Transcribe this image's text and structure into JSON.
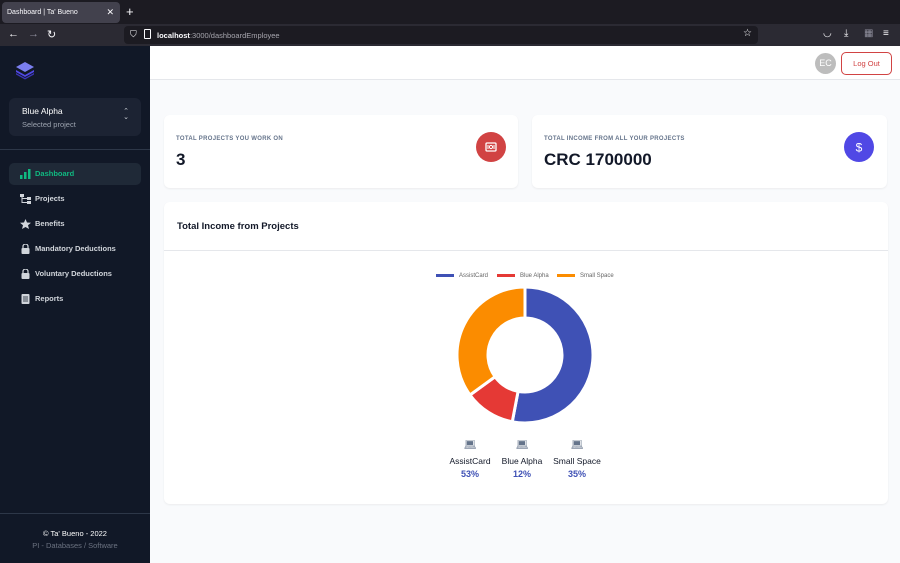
{
  "browser": {
    "tab_title": "Dashboard | Ta' Bueno",
    "url_host": "localhost",
    "url_path": ":3000/dashboardEmployee"
  },
  "sidebar": {
    "project_name": "Blue Alpha",
    "project_sub": "Selected project",
    "items": [
      {
        "label": "Dashboard",
        "icon": "bar-chart-icon",
        "active": true
      },
      {
        "label": "Projects",
        "icon": "hierarchy-icon"
      },
      {
        "label": "Benefits",
        "icon": "star-icon"
      },
      {
        "label": "Mandatory Deductions",
        "icon": "lock-icon"
      },
      {
        "label": "Voluntary Deductions",
        "icon": "lock-icon"
      },
      {
        "label": "Reports",
        "icon": "document-icon"
      }
    ],
    "footer_line1": "© Ta' Bueno - 2022",
    "footer_line2": "PI - Databases / Software"
  },
  "topbar": {
    "avatar_initials": "EC",
    "logout_label": "Log Out"
  },
  "cards": [
    {
      "label": "TOTAL PROJECTS YOU WORK ON",
      "value": "3",
      "icon": "money-icon",
      "color": "#d14343"
    },
    {
      "label": "TOTAL INCOME FROM ALL YOUR PROJECTS",
      "value": "CRC 1700000",
      "icon": "dollar-icon",
      "color": "#5048e5"
    }
  ],
  "chart_section": {
    "title": "Total Income from Projects"
  },
  "chart_data": {
    "type": "pie",
    "series": [
      {
        "name": "AssistCard",
        "value": 53,
        "color": "#3f51b5"
      },
      {
        "name": "Blue Alpha",
        "value": 12,
        "color": "#e53935"
      },
      {
        "name": "Small Space",
        "value": 35,
        "color": "#fb8c00"
      }
    ],
    "legend_placement": "top"
  },
  "stats": [
    {
      "name": "AssistCard",
      "value": "53%",
      "color": "#3f51b5"
    },
    {
      "name": "Blue Alpha",
      "value": "12%",
      "color": "#3f51b5"
    },
    {
      "name": "Small Space",
      "value": "35%",
      "color": "#3f51b5"
    }
  ]
}
